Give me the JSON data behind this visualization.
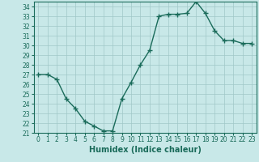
{
  "x": [
    0,
    1,
    2,
    3,
    4,
    5,
    6,
    7,
    8,
    9,
    10,
    11,
    12,
    13,
    14,
    15,
    16,
    17,
    18,
    19,
    20,
    21,
    22,
    23
  ],
  "y": [
    27,
    27,
    26.5,
    24.5,
    23.5,
    22.2,
    21.7,
    21.2,
    21.2,
    24.5,
    26.2,
    28.0,
    29.5,
    33.0,
    33.2,
    33.2,
    33.3,
    34.5,
    33.3,
    31.5,
    30.5,
    30.5,
    30.2,
    30.2
  ],
  "line_color": "#1a6b5a",
  "bg_color": "#c8e8e8",
  "grid_color": "#a0c8c8",
  "xlabel": "Humidex (Indice chaleur)",
  "xlim": [
    -0.5,
    23.5
  ],
  "ylim": [
    21,
    34.5
  ],
  "yticks": [
    21,
    22,
    23,
    24,
    25,
    26,
    27,
    28,
    29,
    30,
    31,
    32,
    33,
    34
  ],
  "xticks": [
    0,
    1,
    2,
    3,
    4,
    5,
    6,
    7,
    8,
    9,
    10,
    11,
    12,
    13,
    14,
    15,
    16,
    17,
    18,
    19,
    20,
    21,
    22,
    23
  ],
  "marker": "+",
  "markersize": 4,
  "linewidth": 1.0,
  "tick_fontsize": 5.5,
  "xlabel_fontsize": 7
}
